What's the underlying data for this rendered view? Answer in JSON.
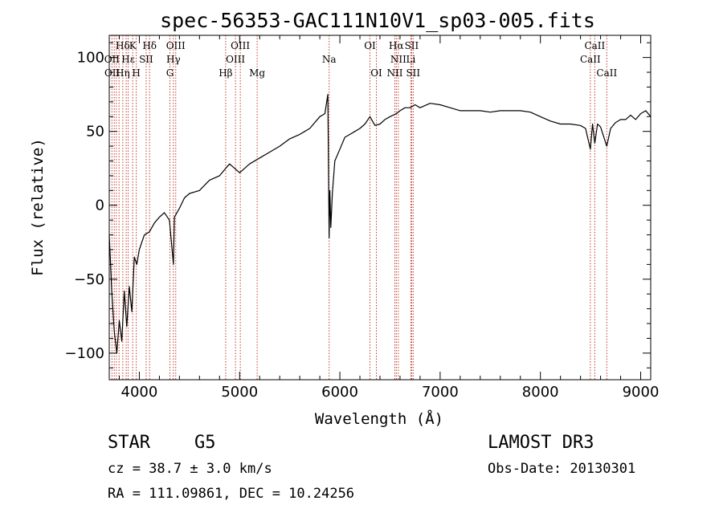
{
  "chart_data": {
    "type": "line",
    "title": "spec-56353-GAC111N10V1_sp03-005.fits",
    "xlabel": "Wavelength (Å)",
    "ylabel": "Flux (relative)",
    "xlim": [
      3700,
      9100
    ],
    "ylim": [
      -118,
      115
    ],
    "xticks": [
      4000,
      5000,
      6000,
      7000,
      8000,
      9000
    ],
    "yticks": [
      -100,
      -50,
      0,
      50,
      100
    ],
    "xtick_labels": [
      "4000",
      "5000",
      "6000",
      "7000",
      "8000",
      "9000"
    ],
    "ytick_labels": [
      "−100",
      "−50",
      "0",
      "50",
      "100"
    ],
    "series": [
      {
        "name": "spectrum",
        "x": [
          3700,
          3725,
          3750,
          3775,
          3800,
          3825,
          3850,
          3875,
          3900,
          3925,
          3950,
          3975,
          4000,
          4050,
          4100,
          4150,
          4200,
          4250,
          4300,
          4340,
          4350,
          4400,
          4450,
          4500,
          4600,
          4700,
          4800,
          4861,
          4900,
          5000,
          5100,
          5200,
          5300,
          5400,
          5500,
          5600,
          5700,
          5800,
          5850,
          5880,
          5893,
          5900,
          5910,
          5925,
          5950,
          6000,
          6050,
          6100,
          6150,
          6200,
          6250,
          6300,
          6350,
          6400,
          6450,
          6500,
          6563,
          6600,
          6650,
          6700,
          6750,
          6800,
          6900,
          7000,
          7100,
          7200,
          7300,
          7400,
          7500,
          7600,
          7700,
          7800,
          7900,
          8000,
          8100,
          8200,
          8300,
          8400,
          8450,
          8498,
          8520,
          8542,
          8570,
          8600,
          8662,
          8700,
          8750,
          8800,
          8850,
          8900,
          8950,
          9000,
          9050,
          9100
        ],
        "y": [
          -20,
          -58,
          -85,
          -100,
          -78,
          -92,
          -58,
          -82,
          -55,
          -72,
          -35,
          -40,
          -30,
          -20,
          -18,
          -12,
          -8,
          -5,
          -10,
          -40,
          -8,
          -2,
          5,
          8,
          10,
          17,
          20,
          25,
          28,
          22,
          28,
          32,
          36,
          40,
          45,
          48,
          52,
          60,
          62,
          75,
          -22,
          10,
          -15,
          8,
          30,
          38,
          46,
          48,
          50,
          52,
          55,
          60,
          54,
          55,
          58,
          60,
          62,
          64,
          66,
          66,
          68,
          66,
          69,
          68,
          66,
          64,
          64,
          64,
          63,
          64,
          64,
          64,
          63,
          60,
          57,
          55,
          55,
          54,
          52,
          38,
          55,
          42,
          55,
          53,
          40,
          52,
          56,
          58,
          58,
          61,
          58,
          62,
          64,
          60
        ]
      }
    ],
    "annotations": [
      {
        "label": "Hδ",
        "x": 3835,
        "row": 1
      },
      {
        "label": "OII",
        "x": 3727,
        "row": 2
      },
      {
        "label": "OII",
        "x": 3729,
        "row": 3
      },
      {
        "label": "Hε",
        "x": 3889,
        "row": 2
      },
      {
        "label": "Hη",
        "x": 3835,
        "row": 3
      },
      {
        "label": "K",
        "x": 3934,
        "row": 1
      },
      {
        "label": "SII",
        "x": 4068,
        "row": 2
      },
      {
        "label": "H",
        "x": 3969,
        "row": 3
      },
      {
        "label": "Hδ",
        "x": 4102,
        "row": 1
      },
      {
        "label": "OIII",
        "x": 4363,
        "row": 1
      },
      {
        "label": "Hγ",
        "x": 4340,
        "row": 2
      },
      {
        "label": "G",
        "x": 4305,
        "row": 3
      },
      {
        "label": "OIII",
        "x": 5007,
        "row": 1
      },
      {
        "label": "OIII",
        "x": 4959,
        "row": 2
      },
      {
        "label": "Hβ",
        "x": 4861,
        "row": 3
      },
      {
        "label": "Mg",
        "x": 5175,
        "row": 3
      },
      {
        "label": "Na",
        "x": 5893,
        "row": 2
      },
      {
        "label": "OI",
        "x": 6300,
        "row": 1
      },
      {
        "label": "OI",
        "x": 6364,
        "row": 3
      },
      {
        "label": "Hα",
        "x": 6563,
        "row": 1
      },
      {
        "label": "SII",
        "x": 6716,
        "row": 1
      },
      {
        "label": "NII",
        "x": 6583,
        "row": 2
      },
      {
        "label": "Li",
        "x": 6708,
        "row": 2
      },
      {
        "label": "NII",
        "x": 6548,
        "row": 3
      },
      {
        "label": "SII",
        "x": 6731,
        "row": 3
      },
      {
        "label": "CaII",
        "x": 8542,
        "row": 1
      },
      {
        "label": "CaII",
        "x": 8498,
        "row": 2
      },
      {
        "label": "CaII",
        "x": 8662,
        "row": 3
      }
    ],
    "line_positions": [
      3727,
      3750,
      3771,
      3798,
      3835,
      3869,
      3889,
      3934,
      3969,
      4068,
      4102,
      4305,
      4340,
      4363,
      4861,
      4959,
      5007,
      5175,
      5893,
      6300,
      6364,
      6548,
      6563,
      6583,
      6708,
      6716,
      6731,
      8498,
      8542,
      8662
    ],
    "grid": false,
    "legend": "none"
  },
  "info": {
    "object_class": "STAR",
    "subclass": "G5",
    "redshift": "cz = 38.7 ± 3.0 km/s",
    "coords": "RA = 111.09861, DEC =  10.24256",
    "survey": "LAMOST DR3",
    "obs_date": "Obs-Date: 20130301"
  }
}
